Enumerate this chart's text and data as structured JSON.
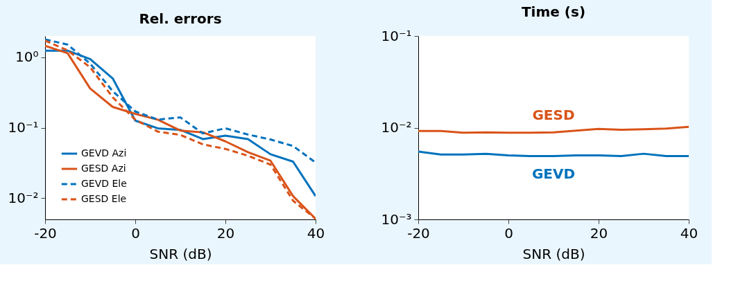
{
  "chart_data": [
    {
      "type": "line",
      "title": "Rel. errors",
      "xlabel": "SNR (dB)",
      "x": [
        -20,
        -15,
        -10,
        -5,
        0,
        5,
        10,
        15,
        20,
        25,
        30,
        35,
        40
      ],
      "xlim": [
        -20,
        40
      ],
      "xticks": [
        -20,
        0,
        20,
        40
      ],
      "ylim": [
        0.005,
        2
      ],
      "yticks": [
        {
          "value": 0.01,
          "label": "10⁻²"
        },
        {
          "value": 0.1,
          "label": "10⁻¹"
        },
        {
          "value": 1,
          "label": "10⁰"
        }
      ],
      "log": "y",
      "grid": false,
      "legend": "bottom left",
      "series": [
        {
          "name": "GEVD Azi",
          "color": "#0072bd",
          "line_style": "solid",
          "values": [
            1.24,
            1.24,
            0.94,
            0.5,
            0.126,
            0.098,
            0.093,
            0.069,
            0.077,
            0.069,
            0.042,
            0.033,
            0.0107
          ]
        },
        {
          "name": "GESD Azi",
          "color": "#d95319",
          "line_style": "solid",
          "values": [
            1.45,
            1.14,
            0.36,
            0.197,
            0.157,
            0.13,
            0.091,
            0.086,
            0.064,
            0.045,
            0.034,
            0.0107,
            0.0051
          ]
        },
        {
          "name": "GEVD Ele",
          "color": "#0072bd",
          "line_style": "dashed",
          "values": [
            1.79,
            1.51,
            0.81,
            0.33,
            0.17,
            0.13,
            0.14,
            0.083,
            0.098,
            0.08,
            0.068,
            0.055,
            0.032
          ]
        },
        {
          "name": "GESD Ele",
          "color": "#d95319",
          "line_style": "dashed",
          "values": [
            1.72,
            1.25,
            0.72,
            0.27,
            0.13,
            0.088,
            0.079,
            0.058,
            0.05,
            0.04,
            0.03,
            0.0092,
            0.0051
          ]
        }
      ]
    },
    {
      "type": "line",
      "title": "Time (s)",
      "xlabel": "SNR (dB)",
      "x": [
        -20,
        -15,
        -10,
        -5,
        0,
        5,
        10,
        15,
        20,
        25,
        30,
        35,
        40
      ],
      "xlim": [
        -20,
        40
      ],
      "xticks": [
        -20,
        0,
        20,
        40
      ],
      "ylim": [
        0.001,
        0.1
      ],
      "yticks": [
        {
          "value": 0.001,
          "label": "10⁻³"
        },
        {
          "value": 0.01,
          "label": "10⁻²"
        },
        {
          "value": 0.1,
          "label": "10⁻¹"
        }
      ],
      "log": "y",
      "grid": false,
      "legend": false,
      "series": [
        {
          "name": "GESD",
          "color": "#d95319",
          "line_style": "solid",
          "values": [
            0.0092,
            0.0092,
            0.0088,
            0.0089,
            0.0088,
            0.0088,
            0.0089,
            0.0093,
            0.0097,
            0.0095,
            0.0096,
            0.0098,
            0.0102
          ]
        },
        {
          "name": "GEVD",
          "color": "#0072bd",
          "line_style": "solid",
          "values": [
            0.0055,
            0.0051,
            0.0051,
            0.0052,
            0.005,
            0.0049,
            0.0049,
            0.005,
            0.005,
            0.0049,
            0.0052,
            0.0049,
            0.0049
          ]
        }
      ]
    }
  ]
}
